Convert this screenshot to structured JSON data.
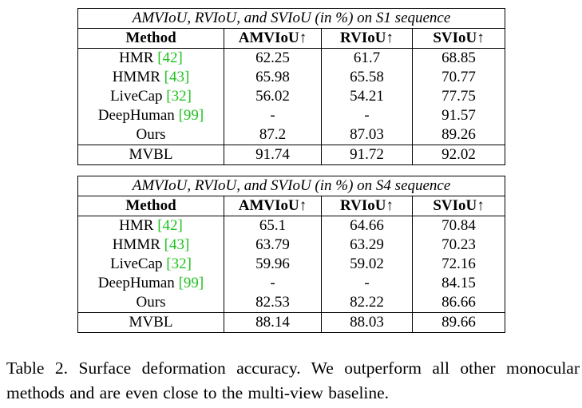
{
  "headers": [
    "Method",
    "AMVIoU↑",
    "RVIoU↑",
    "SVIoU↑"
  ],
  "tables": [
    {
      "caption": "AMVIoU, RVIoU, and SVIoU (in %) on S1 sequence",
      "rows": [
        {
          "method": "HMR",
          "ref": "[42]",
          "amviou": "62.25",
          "rviou": "61.7",
          "sviou": "68.85"
        },
        {
          "method": "HMMR",
          "ref": "[43]",
          "amviou": "65.98",
          "rviou": "65.58",
          "sviou": "70.77"
        },
        {
          "method": "LiveCap",
          "ref": "[32]",
          "amviou": "56.02",
          "rviou": "54.21",
          "sviou": "77.75"
        },
        {
          "method": "DeepHuman",
          "ref": "[99]",
          "amviou": "-",
          "rviou": "-",
          "sviou": "91.57"
        },
        {
          "method": "Ours",
          "ref": "",
          "amviou": "87.2",
          "rviou": "87.03",
          "sviou": "89.26"
        }
      ],
      "baseline": {
        "method": "MVBL",
        "amviou": "91.74",
        "rviou": "91.72",
        "sviou": "92.02"
      }
    },
    {
      "caption": "AMVIoU, RVIoU, and SVIoU (in %) on S4 sequence",
      "rows": [
        {
          "method": "HMR",
          "ref": "[42]",
          "amviou": "65.1",
          "rviou": "64.66",
          "sviou": "70.84"
        },
        {
          "method": "HMMR",
          "ref": "[43]",
          "amviou": "63.79",
          "rviou": "63.29",
          "sviou": "70.23"
        },
        {
          "method": "LiveCap",
          "ref": "[32]",
          "amviou": "59.96",
          "rviou": "59.02",
          "sviou": "72.16"
        },
        {
          "method": "DeepHuman",
          "ref": "[99]",
          "amviou": "-",
          "rviou": "-",
          "sviou": "84.15"
        },
        {
          "method": "Ours",
          "ref": "",
          "amviou": "82.53",
          "rviou": "82.22",
          "sviou": "86.66"
        }
      ],
      "baseline": {
        "method": "MVBL",
        "amviou": "88.14",
        "rviou": "88.03",
        "sviou": "89.66"
      }
    }
  ],
  "caption": {
    "label": "Table 2.",
    "text": "Surface deformation accuracy. We outperform all other monocular methods and are even close to the multi-view baseline."
  }
}
